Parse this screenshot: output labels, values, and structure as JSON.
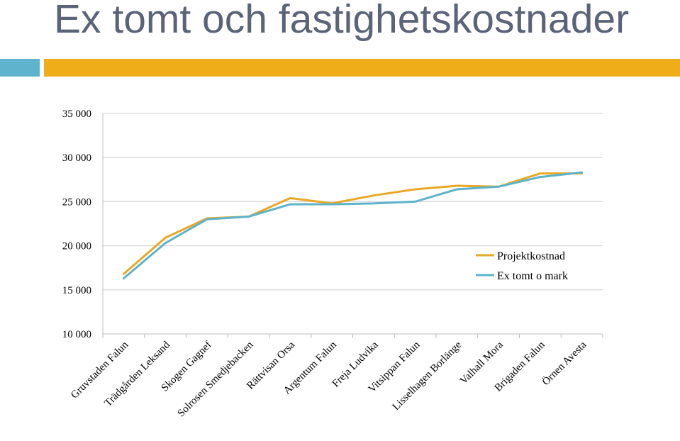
{
  "slide": {
    "title": "Ex tomt och fastighetskostnader",
    "accent_colors": {
      "blue": "#5fb3cc",
      "gold": "#f0ad1a"
    }
  },
  "chart_data": {
    "type": "line",
    "categories": [
      "Gruvstaden Falun",
      "Trädgården Leksand",
      "Skogen Gagnef",
      "Solrosen Smedjebacken",
      "Rättvisan Orsa",
      "Argentum Falun",
      "Freja Ludvika",
      "Vitsippan Falun",
      "Lisselhagen Borlänge",
      "Valhall Mora",
      "Brigaden Falun",
      "Örnen Avesta"
    ],
    "series": [
      {
        "name": "Projektkostnad",
        "color": "#e9a825",
        "values": [
          16800,
          20900,
          23100,
          23300,
          25400,
          24800,
          25700,
          26400,
          26800,
          26700,
          28200,
          28200
        ]
      },
      {
        "name": "Ex tomt o mark",
        "color": "#5db3cb",
        "values": [
          16300,
          20300,
          23000,
          23300,
          24700,
          24700,
          24800,
          25000,
          26400,
          26700,
          27800,
          28300
        ]
      }
    ],
    "y_ticks": [
      {
        "value": 10000,
        "label": "10 000"
      },
      {
        "value": 15000,
        "label": "15 000"
      },
      {
        "value": 20000,
        "label": "20 000"
      },
      {
        "value": 25000,
        "label": "25 000"
      },
      {
        "value": 30000,
        "label": "30 000"
      },
      {
        "value": 35000,
        "label": "35 000"
      }
    ],
    "ylim": [
      10000,
      35000
    ],
    "grid": "horizontal",
    "legend_position": "right-middle",
    "gridline_color": "#d0d0d0",
    "axis_color": "#bcbcbc"
  }
}
